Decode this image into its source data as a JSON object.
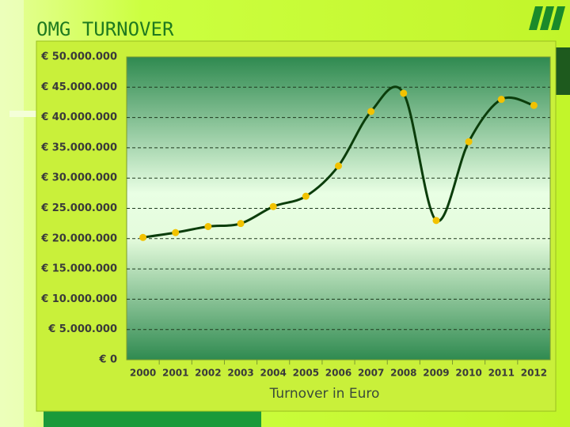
{
  "chart_data": {
    "type": "line",
    "title": "OMG TURNOVER",
    "x_label": "Turnover in Euro",
    "categories": [
      "2000",
      "2001",
      "2002",
      "2003",
      "2004",
      "2005",
      "2006",
      "2007",
      "2008",
      "2009",
      "2010",
      "2011",
      "2012"
    ],
    "series": [
      {
        "name": "Turnover",
        "color": "#0b3d0b",
        "values": [
          20200000,
          21000000,
          22000000,
          22500000,
          25300000,
          27000000,
          32000000,
          41000000,
          44000000,
          23000000,
          36000000,
          43000000,
          42000000
        ]
      }
    ],
    "marker_color": "#f2c200",
    "ylim": [
      0,
      50000000
    ],
    "yticks": [
      {
        "value": 0,
        "label": "€ 0"
      },
      {
        "value": 5000000,
        "label": "€ 5.000.000"
      },
      {
        "value": 10000000,
        "label": "€ 10.000.000"
      },
      {
        "value": 15000000,
        "label": "€ 15.000.000"
      },
      {
        "value": 20000000,
        "label": "€ 20.000.000"
      },
      {
        "value": 25000000,
        "label": "€ 25.000.000"
      },
      {
        "value": 30000000,
        "label": "€ 30.000.000"
      },
      {
        "value": 35000000,
        "label": "€ 35.000.000"
      },
      {
        "value": 40000000,
        "label": "€ 40.000.000"
      },
      {
        "value": 45000000,
        "label": "€ 45.000.000"
      },
      {
        "value": 50000000,
        "label": "€ 50.000.000"
      }
    ],
    "grid": true,
    "smooth": true
  }
}
